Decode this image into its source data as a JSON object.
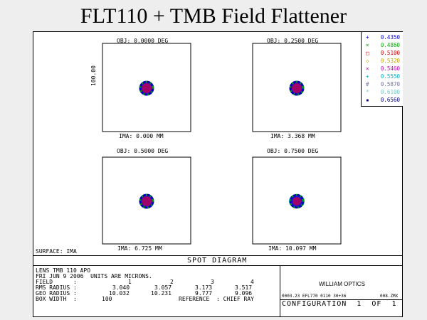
{
  "slide_title": "FLT110 + TMB Field Flattener",
  "fields": [
    {
      "obj": "OBJ: 0.0000 DEG",
      "ima": "IMA: 0.000 MM"
    },
    {
      "obj": "OBJ: 0.2500 DEG",
      "ima": "IMA: 3.368 MM"
    },
    {
      "obj": "OBJ: 0.5000 DEG",
      "ima": "IMA: 6.725 MM"
    },
    {
      "obj": "OBJ: 0.7500 DEG",
      "ima": "IMA: 10.097 MM"
    }
  ],
  "box_width_label": "100.00",
  "surface_label": "SURFACE: IMA",
  "diagram_title": "SPOT DIAGRAM",
  "legend": [
    {
      "symbol": "+",
      "wavelength": "0.4350",
      "color": "#0000cc"
    },
    {
      "symbol": "×",
      "wavelength": "0.4860",
      "color": "#00aa00"
    },
    {
      "symbol": "□",
      "wavelength": "0.5100",
      "color": "#cc0000"
    },
    {
      "symbol": "◇",
      "wavelength": "0.5320",
      "color": "#c8a000"
    },
    {
      "symbol": "×",
      "wavelength": "0.5460",
      "color": "#cc00cc"
    },
    {
      "symbol": "+",
      "wavelength": "0.5550",
      "color": "#00b0c0"
    },
    {
      "symbol": "#",
      "wavelength": "0.5870",
      "color": "#7070a0"
    },
    {
      "symbol": "*",
      "wavelength": "0.6100",
      "color": "#70c8c8"
    },
    {
      "symbol": "▪",
      "wavelength": "0.6560",
      "color": "#000080"
    }
  ],
  "info": {
    "line1": "LENS TMB 110 APO",
    "line2": "FRI JUN 9 2006  UNITS ARE MICRONS.",
    "field_label": "FIELD      :",
    "field_values": [
      "1",
      "2",
      "3",
      "4"
    ],
    "rms_label": "RMS RADIUS :",
    "rms_values": [
      "3.040",
      "3.057",
      "3.173",
      "3.517"
    ],
    "geo_label": "GEO RADIUS :",
    "geo_values": [
      "10.032",
      "10.231",
      "9.777",
      "9.096"
    ],
    "box_label": "BOX WIDTH  :",
    "box_value": "100",
    "reference_label": "REFERENCE  : CHIEF RAY"
  },
  "company": "WILLIAM OPTICS",
  "file_info": "0003.23 EFL770 0110 30+36",
  "zmx_info": "008.ZMX",
  "configuration": "CONFIGURATION  1  OF  1",
  "colors": {
    "spot_outer": "#1010e0",
    "spot_inner": "#a0006a",
    "spot_cyan": "#00c0d0",
    "spot_green": "#00a000"
  }
}
